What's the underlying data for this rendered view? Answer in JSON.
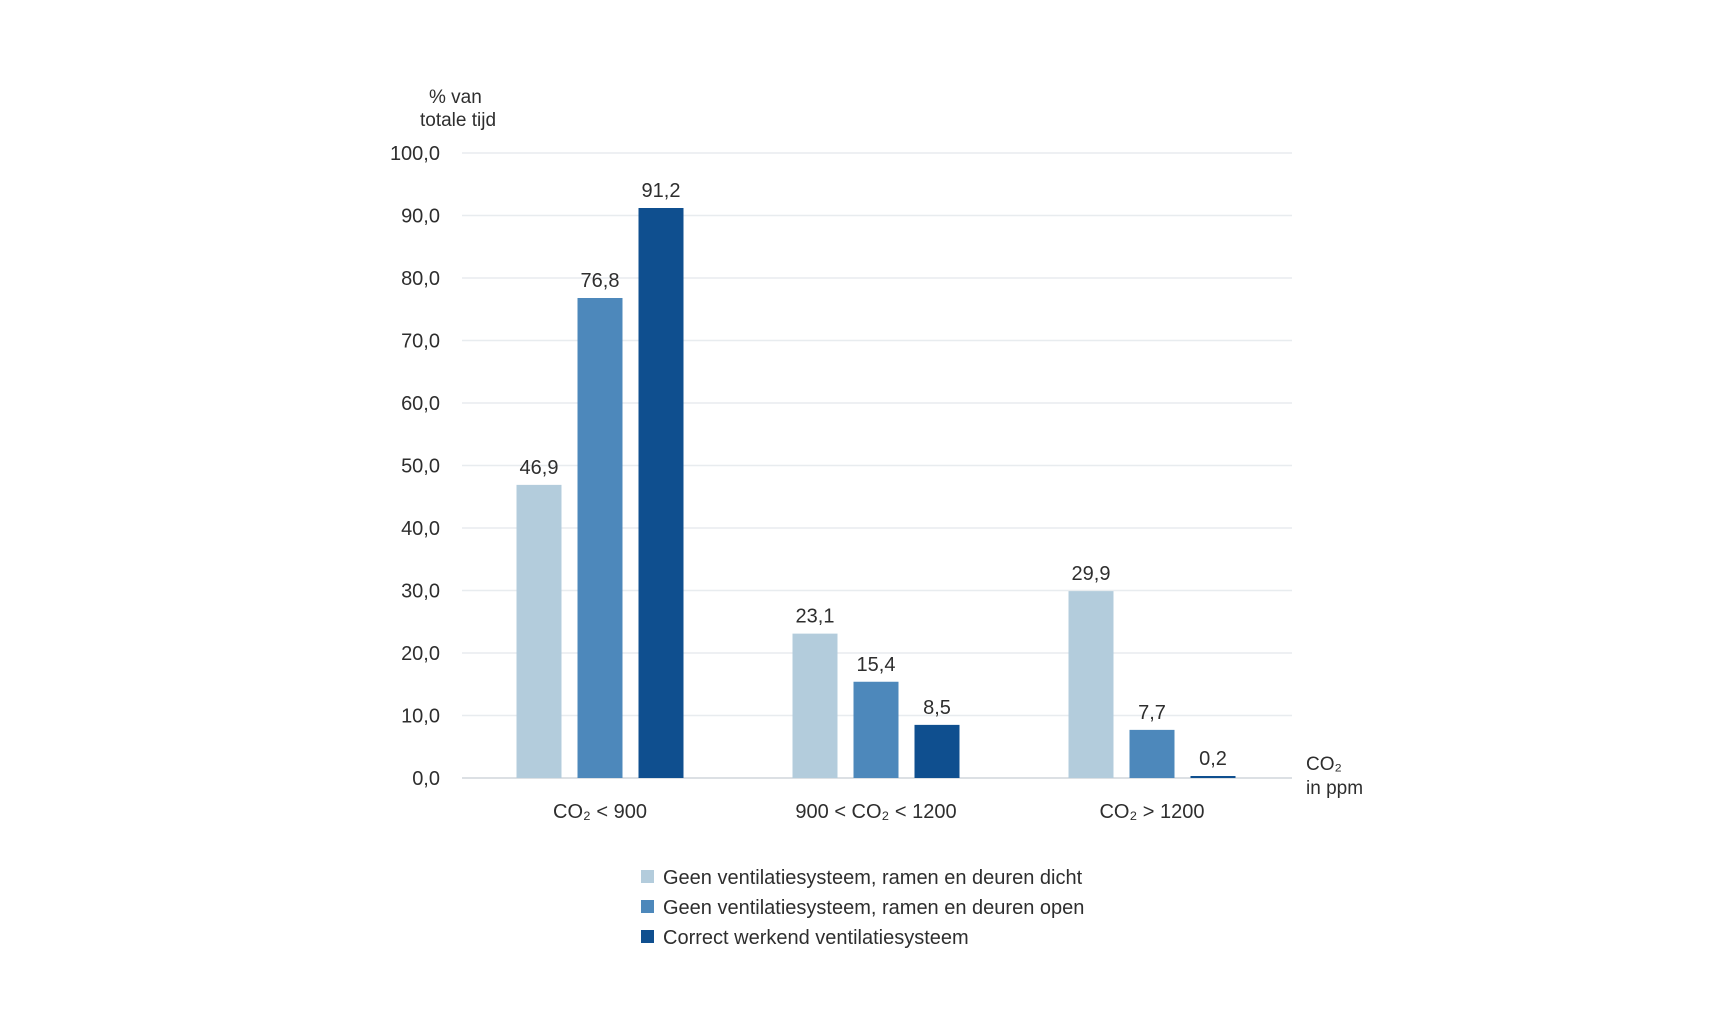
{
  "chart_data": {
    "type": "bar",
    "ylabel": [
      "% van",
      "totale tijd"
    ],
    "xlabel": [
      "CO₂",
      "in ppm"
    ],
    "categories": [
      "CO₂ < 900",
      "900 < CO₂ < 1200",
      "CO₂ > 1200"
    ],
    "ylim": [
      0,
      100
    ],
    "yticks": [
      "0,0",
      "10,0",
      "20,0",
      "30,0",
      "40,0",
      "50,0",
      "60,0",
      "70,0",
      "80,0",
      "90,0",
      "100,0"
    ],
    "grid": true,
    "legend_position": "bottom",
    "series": [
      {
        "name": "Geen ventilatiesysteem, ramen en deuren dicht",
        "color": "#b3ccdc",
        "values": [
          46.9,
          23.1,
          29.9
        ],
        "labels": [
          "46,9",
          "23,1",
          "29,9"
        ]
      },
      {
        "name": "Geen ventilatiesysteem, ramen en deuren open",
        "color": "#4d88bb",
        "values": [
          76.8,
          15.4,
          7.7
        ],
        "labels": [
          "76,8",
          "15,4",
          "7,7"
        ]
      },
      {
        "name": "Correct werkend ventilatiesysteem",
        "color": "#0f4f8f",
        "values": [
          91.2,
          8.5,
          0.2
        ],
        "labels": [
          "91,2",
          "8,5",
          "0,2"
        ]
      }
    ]
  }
}
